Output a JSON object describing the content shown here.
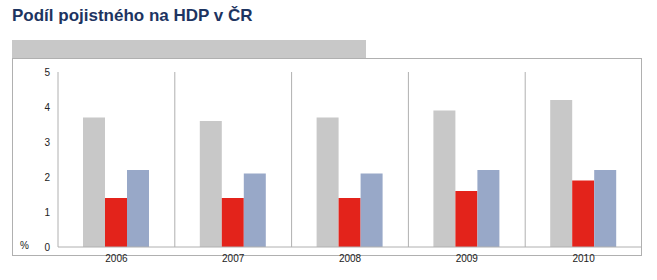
{
  "chart_data": {
    "type": "bar",
    "title": "Podíl pojistného na HDP v ČR",
    "y_label": "%",
    "categories": [
      "2006",
      "2007",
      "2008",
      "2009",
      "2010"
    ],
    "series": [
      {
        "color": "#c8c8c8",
        "values": [
          3.7,
          3.6,
          3.7,
          3.9,
          4.2
        ]
      },
      {
        "color": "#e3231b",
        "values": [
          1.4,
          1.4,
          1.4,
          1.6,
          1.9
        ]
      },
      {
        "color": "#98a8c8",
        "values": [
          2.2,
          2.1,
          2.1,
          2.2,
          2.2
        ]
      }
    ],
    "ylim": [
      0,
      5
    ],
    "yticks": [
      0,
      1,
      2,
      3,
      4,
      5
    ]
  }
}
